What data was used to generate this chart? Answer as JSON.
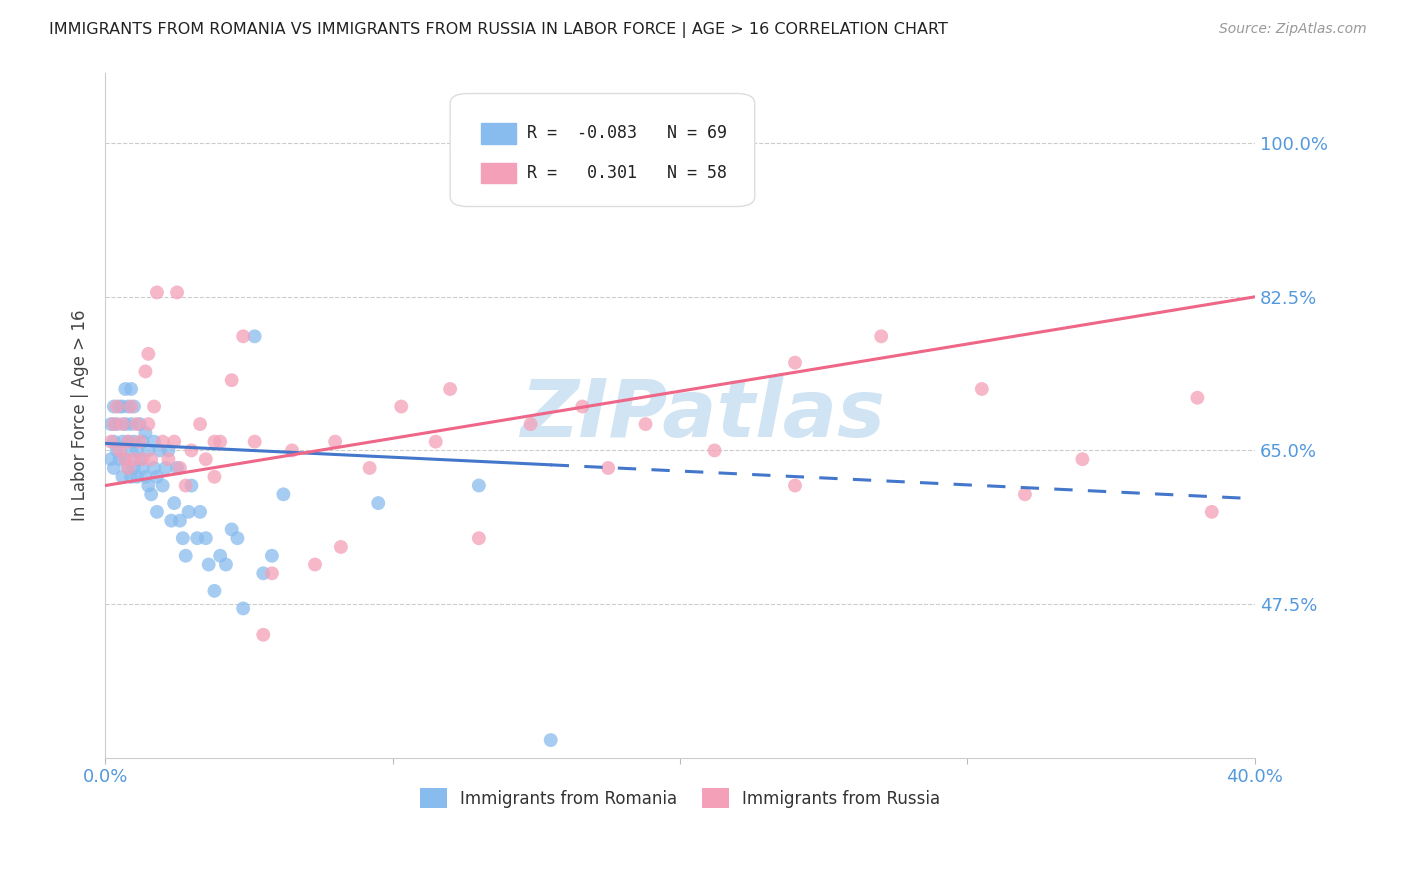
{
  "title": "IMMIGRANTS FROM ROMANIA VS IMMIGRANTS FROM RUSSIA IN LABOR FORCE | AGE > 16 CORRELATION CHART",
  "source": "Source: ZipAtlas.com",
  "ylabel": "In Labor Force | Age > 16",
  "xlim": [
    0.0,
    0.4
  ],
  "ylim": [
    0.3,
    1.08
  ],
  "yticks": [
    0.475,
    0.65,
    0.825,
    1.0
  ],
  "ytick_labels": [
    "47.5%",
    "65.0%",
    "82.5%",
    "100.0%"
  ],
  "xticks": [
    0.0,
    0.1,
    0.2,
    0.3,
    0.4
  ],
  "xtick_labels": [
    "0.0%",
    "",
    "",
    "",
    "40.0%"
  ],
  "romania_R": -0.083,
  "romania_N": 69,
  "russia_R": 0.301,
  "russia_N": 58,
  "romania_color": "#88bbee",
  "russia_color": "#f4a0b8",
  "romania_line_color": "#4477cc",
  "russia_line_color": "#ee6688",
  "watermark": "ZIPatlas",
  "watermark_color": "#d0e4f4",
  "romania_x": [
    0.002,
    0.002,
    0.003,
    0.003,
    0.003,
    0.004,
    0.004,
    0.005,
    0.005,
    0.006,
    0.006,
    0.006,
    0.007,
    0.007,
    0.007,
    0.008,
    0.008,
    0.008,
    0.009,
    0.009,
    0.009,
    0.009,
    0.01,
    0.01,
    0.01,
    0.011,
    0.011,
    0.012,
    0.012,
    0.013,
    0.013,
    0.014,
    0.014,
    0.015,
    0.015,
    0.016,
    0.017,
    0.017,
    0.018,
    0.018,
    0.019,
    0.02,
    0.021,
    0.022,
    0.023,
    0.024,
    0.025,
    0.026,
    0.027,
    0.028,
    0.029,
    0.03,
    0.032,
    0.033,
    0.035,
    0.036,
    0.038,
    0.04,
    0.042,
    0.044,
    0.046,
    0.048,
    0.052,
    0.055,
    0.058,
    0.062,
    0.095,
    0.13,
    0.155
  ],
  "romania_y": [
    0.64,
    0.68,
    0.66,
    0.7,
    0.63,
    0.65,
    0.68,
    0.64,
    0.7,
    0.62,
    0.66,
    0.7,
    0.64,
    0.68,
    0.72,
    0.63,
    0.66,
    0.7,
    0.62,
    0.65,
    0.68,
    0.72,
    0.63,
    0.66,
    0.7,
    0.62,
    0.65,
    0.64,
    0.68,
    0.63,
    0.66,
    0.62,
    0.67,
    0.61,
    0.65,
    0.6,
    0.63,
    0.66,
    0.58,
    0.62,
    0.65,
    0.61,
    0.63,
    0.65,
    0.57,
    0.59,
    0.63,
    0.57,
    0.55,
    0.53,
    0.58,
    0.61,
    0.55,
    0.58,
    0.55,
    0.52,
    0.49,
    0.53,
    0.52,
    0.56,
    0.55,
    0.47,
    0.78,
    0.51,
    0.53,
    0.6,
    0.59,
    0.61,
    0.32
  ],
  "russia_x": [
    0.002,
    0.003,
    0.004,
    0.005,
    0.006,
    0.007,
    0.008,
    0.009,
    0.01,
    0.011,
    0.012,
    0.013,
    0.014,
    0.015,
    0.016,
    0.017,
    0.018,
    0.02,
    0.022,
    0.024,
    0.026,
    0.028,
    0.03,
    0.033,
    0.035,
    0.038,
    0.04,
    0.044,
    0.048,
    0.052,
    0.058,
    0.065,
    0.073,
    0.082,
    0.092,
    0.103,
    0.115,
    0.13,
    0.148,
    0.166,
    0.188,
    0.212,
    0.24,
    0.27,
    0.305,
    0.34,
    0.38,
    0.008,
    0.015,
    0.025,
    0.038,
    0.055,
    0.08,
    0.12,
    0.175,
    0.24,
    0.32,
    0.385
  ],
  "russia_y": [
    0.66,
    0.68,
    0.7,
    0.65,
    0.68,
    0.64,
    0.66,
    0.7,
    0.64,
    0.68,
    0.66,
    0.64,
    0.74,
    0.68,
    0.64,
    0.7,
    0.83,
    0.66,
    0.64,
    0.66,
    0.63,
    0.61,
    0.65,
    0.68,
    0.64,
    0.66,
    0.66,
    0.73,
    0.78,
    0.66,
    0.51,
    0.65,
    0.52,
    0.54,
    0.63,
    0.7,
    0.66,
    0.55,
    0.68,
    0.7,
    0.68,
    0.65,
    0.75,
    0.78,
    0.72,
    0.64,
    0.71,
    0.63,
    0.76,
    0.83,
    0.62,
    0.44,
    0.66,
    0.72,
    0.63,
    0.61,
    0.6,
    0.58
  ],
  "rom_line_x0": 0.0,
  "rom_line_x1": 0.4,
  "rom_line_y0": 0.658,
  "rom_line_y1": 0.595,
  "rom_line_solid_end": 0.155,
  "rus_line_x0": 0.0,
  "rus_line_x1": 0.4,
  "rus_line_y0": 0.61,
  "rus_line_y1": 0.825
}
